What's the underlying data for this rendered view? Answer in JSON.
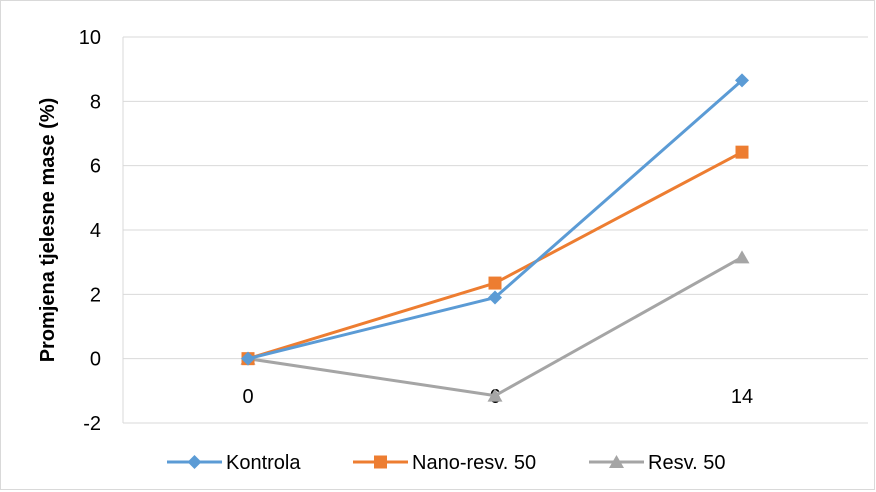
{
  "chart_data": {
    "type": "line",
    "title": "",
    "xlabel": "",
    "ylabel": "Promjena tjelesne mase (%)",
    "x": [
      0,
      6,
      14
    ],
    "x_tick_labels": [
      "0",
      "6",
      "14"
    ],
    "ylim": [
      -2,
      10
    ],
    "y_ticks": [
      -2,
      0,
      2,
      4,
      6,
      8,
      10
    ],
    "y_tick_labels": [
      "-2",
      "0",
      "2",
      "4",
      "6",
      "8",
      "10"
    ],
    "grid": "horizontal",
    "legend_position": "bottom",
    "series": [
      {
        "name": "Kontrola",
        "values": [
          0,
          1.9,
          8.65
        ],
        "color": "#5b9bd5",
        "marker": "diamond"
      },
      {
        "name": "Nano-resv. 50",
        "values": [
          0,
          2.35,
          6.42
        ],
        "color": "#ed7d31",
        "marker": "square"
      },
      {
        "name": "Resv. 50",
        "values": [
          0,
          -1.15,
          3.15
        ],
        "color": "#a5a5a5",
        "marker": "triangle"
      }
    ]
  }
}
